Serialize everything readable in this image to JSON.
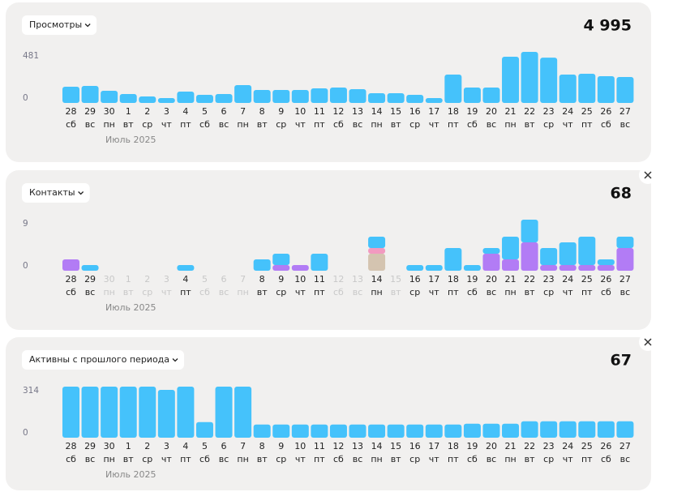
{
  "chart_data": [
    {
      "type": "bar",
      "title": "Просмотры",
      "total": "4 995",
      "categories": [
        "28",
        "29",
        "30",
        "1",
        "2",
        "3",
        "4",
        "5",
        "6",
        "7",
        "8",
        "9",
        "10",
        "11",
        "12",
        "13",
        "14",
        "15",
        "16",
        "17",
        "18",
        "19",
        "20",
        "21",
        "22",
        "23",
        "24",
        "25",
        "26",
        "27"
      ],
      "weekdays": [
        "сб",
        "вс",
        "пн",
        "вт",
        "ср",
        "чт",
        "пт",
        "сб",
        "вс",
        "пн",
        "вт",
        "ср",
        "чт",
        "пт",
        "сб",
        "вс",
        "пн",
        "вт",
        "ср",
        "чт",
        "пт",
        "сб",
        "вс",
        "пн",
        "вт",
        "ср",
        "чт",
        "пт",
        "сб",
        "вс"
      ],
      "month_label": "Июль 2025",
      "ylim": [
        0,
        481
      ],
      "yticks": [
        0,
        481
      ],
      "series": [
        {
          "color": "#45c2fb",
          "values": [
            153,
            160,
            115,
            84,
            61,
            46,
            107,
            76,
            84,
            168,
            122,
            122,
            122,
            137,
            145,
            130,
            92,
            92,
            76,
            46,
            267,
            145,
            145,
            435,
            481,
            427,
            267,
            275,
            252,
            244
          ]
        }
      ]
    },
    {
      "type": "stacked_bar",
      "title": "Контакты",
      "total": "68",
      "categories": [
        "28",
        "29",
        "30",
        "1",
        "2",
        "3",
        "4",
        "5",
        "6",
        "7",
        "8",
        "9",
        "10",
        "11",
        "12",
        "13",
        "14",
        "15",
        "16",
        "17",
        "18",
        "19",
        "20",
        "21",
        "22",
        "23",
        "24",
        "25",
        "26",
        "27"
      ],
      "weekdays": [
        "сб",
        "вс",
        "пн",
        "вт",
        "ср",
        "чт",
        "пт",
        "сб",
        "вс",
        "пн",
        "вт",
        "ср",
        "чт",
        "пт",
        "сб",
        "вс",
        "пн",
        "вт",
        "ср",
        "чт",
        "пт",
        "сб",
        "вс",
        "пн",
        "вт",
        "ср",
        "чт",
        "пт",
        "сб",
        "вс"
      ],
      "month_label": "Июль 2025",
      "ylim": [
        0,
        9
      ],
      "yticks": [
        0,
        9
      ],
      "series": [
        {
          "color": "#d4c4b0",
          "values": [
            0,
            0,
            0,
            0,
            0,
            0,
            0,
            0,
            0,
            0,
            0,
            0,
            0,
            0,
            0,
            0,
            3,
            0,
            0,
            0,
            0,
            0,
            0,
            0,
            0,
            0,
            0,
            0,
            0,
            0
          ]
        },
        {
          "color": "#b27cf5",
          "values": [
            2,
            0,
            0,
            0,
            0,
            0,
            0,
            0,
            0,
            0,
            0,
            1,
            1,
            0,
            0,
            0,
            0,
            0,
            0,
            0,
            0,
            0,
            3,
            2,
            5,
            1,
            1,
            1,
            1,
            4
          ]
        },
        {
          "color": "#f29ac0",
          "values": [
            0,
            0,
            0,
            0,
            0,
            0,
            0,
            0,
            0,
            0,
            0,
            0,
            0,
            0,
            0,
            0,
            1,
            0,
            0,
            0,
            0,
            0,
            0,
            0,
            0,
            0,
            0,
            0,
            0,
            0
          ]
        },
        {
          "color": "#45c2fb",
          "values": [
            0,
            1,
            0,
            0,
            0,
            0,
            1,
            0,
            0,
            0,
            2,
            2,
            0,
            3,
            0,
            0,
            2,
            0,
            1,
            1,
            4,
            1,
            1,
            4,
            4,
            3,
            4,
            5,
            1,
            2
          ]
        }
      ]
    },
    {
      "type": "bar",
      "title": "Активны с прошлого периода",
      "total": "67",
      "categories": [
        "28",
        "29",
        "30",
        "1",
        "2",
        "3",
        "4",
        "5",
        "6",
        "7",
        "8",
        "9",
        "10",
        "11",
        "12",
        "13",
        "14",
        "15",
        "16",
        "17",
        "18",
        "19",
        "20",
        "21",
        "22",
        "23",
        "24",
        "25",
        "26",
        "27"
      ],
      "weekdays": [
        "сб",
        "вс",
        "пн",
        "вт",
        "ср",
        "чт",
        "пт",
        "сб",
        "вс",
        "пн",
        "вт",
        "ср",
        "чт",
        "пт",
        "сб",
        "вс",
        "пн",
        "вт",
        "ср",
        "чт",
        "пт",
        "сб",
        "вс",
        "пн",
        "вт",
        "ср",
        "чт",
        "пт",
        "сб",
        "вс"
      ],
      "month_label": "Июль 2025",
      "ylim": [
        0,
        314
      ],
      "yticks": [
        0,
        314
      ],
      "series": [
        {
          "color": "#45c2fb",
          "values": [
            314,
            314,
            314,
            314,
            314,
            294,
            314,
            96,
            314,
            314,
            81,
            81,
            81,
            81,
            81,
            81,
            81,
            81,
            81,
            81,
            81,
            86,
            86,
            86,
            101,
            101,
            101,
            101,
            101,
            101
          ]
        }
      ]
    }
  ]
}
